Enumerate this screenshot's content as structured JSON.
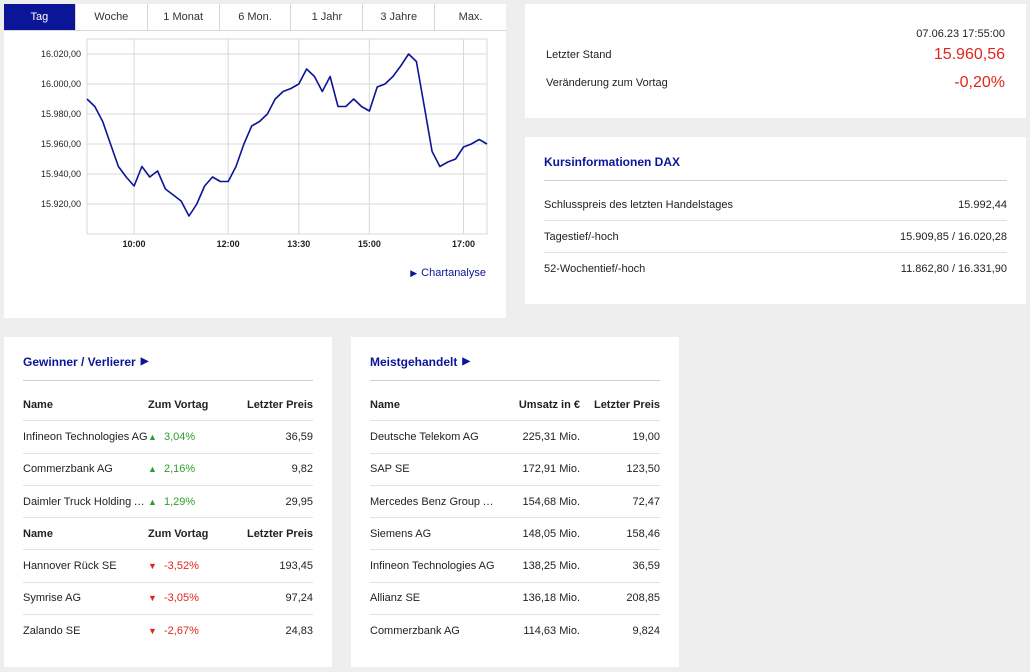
{
  "tabs": [
    {
      "label": "Tag",
      "active": true
    },
    {
      "label": "Woche",
      "active": false
    },
    {
      "label": "1 Monat",
      "active": false
    },
    {
      "label": "6 Mon.",
      "active": false
    },
    {
      "label": "1 Jahr",
      "active": false
    },
    {
      "label": "3 Jahre",
      "active": false
    },
    {
      "label": "Max.",
      "active": false
    }
  ],
  "chart_data": {
    "type": "line",
    "title": "",
    "xlabel": "",
    "ylabel": "",
    "ylim": [
      15900,
      16030
    ],
    "xlim": [
      "09:00",
      "17:30"
    ],
    "grid": true,
    "x_ticks": [
      "10:00",
      "12:00",
      "13:30",
      "15:00",
      "17:00"
    ],
    "y_ticks": [
      "16.020,00",
      "16.000,00",
      "15.980,00",
      "15.960,00",
      "15.940,00",
      "15.920,00"
    ],
    "y_tick_values": [
      16020,
      16000,
      15980,
      15960,
      15940,
      15920
    ],
    "color": "#0b1597",
    "series": [
      {
        "x": [
          "09:00",
          "09:10",
          "09:20",
          "09:30",
          "09:40",
          "09:50",
          "10:00",
          "10:10",
          "10:20",
          "10:30",
          "10:40",
          "10:50",
          "11:00",
          "11:10",
          "11:20",
          "11:30",
          "11:40",
          "11:50",
          "12:00",
          "12:10",
          "12:20",
          "12:30",
          "12:40",
          "12:50",
          "13:00",
          "13:10",
          "13:20",
          "13:30",
          "13:40",
          "13:50",
          "14:00",
          "14:10",
          "14:20",
          "14:30",
          "14:40",
          "14:50",
          "15:00",
          "15:10",
          "15:20",
          "15:30",
          "15:40",
          "15:50",
          "16:00",
          "16:10",
          "16:20",
          "16:30",
          "16:40",
          "16:50",
          "17:00",
          "17:10",
          "17:20",
          "17:30"
        ],
        "y": [
          15990,
          15985,
          15975,
          15960,
          15945,
          15938,
          15932,
          15945,
          15938,
          15942,
          15930,
          15926,
          15922,
          15912,
          15920,
          15932,
          15938,
          15935,
          15935,
          15945,
          15960,
          15972,
          15975,
          15980,
          15990,
          15995,
          15997,
          16000,
          16010,
          16005,
          15995,
          16005,
          15985,
          15985,
          15990,
          15985,
          15982,
          15998,
          16000,
          16005,
          16012,
          16020,
          16015,
          15985,
          15955,
          15945,
          15948,
          15950,
          15958,
          15960,
          15963,
          15960
        ]
      }
    ]
  },
  "chart_link": "Chartanalyse",
  "quote": {
    "timestamp": "07.06.23 17:55:00",
    "last_label": "Letzter Stand",
    "last_value": "15.960,56",
    "change_label": "Veränderung zum Vortag",
    "change_value": "-0,20%"
  },
  "info": {
    "title": "Kursinformationen DAX",
    "rows": [
      {
        "label": "Schlusspreis des letzten Handelstages",
        "value": "15.992,44"
      },
      {
        "label": "Tagestief/-hoch",
        "value": "15.909,85 / 16.020,28"
      },
      {
        "label": "52-Wochentief/-hoch",
        "value": "11.862,80 / 16.331,90"
      }
    ]
  },
  "movers": {
    "title": "Gewinner / Verlierer",
    "head": {
      "name": "Name",
      "change": "Zum Vortag",
      "price": "Letzter Preis"
    },
    "gainers": [
      {
        "name": "Infineon Technologies AG",
        "change": "3,04%",
        "price": "36,59"
      },
      {
        "name": "Commerzbank AG",
        "change": "2,16%",
        "price": "9,82"
      },
      {
        "name": "Daimler Truck Holding AG",
        "change": "1,29%",
        "price": "29,95"
      }
    ],
    "losers": [
      {
        "name": "Hannover Rück SE",
        "change": "-3,52%",
        "price": "193,45"
      },
      {
        "name": "Symrise AG",
        "change": "-3,05%",
        "price": "97,24"
      },
      {
        "name": "Zalando SE",
        "change": "-2,67%",
        "price": "24,83"
      }
    ],
    "up_color": "#2e9e2e",
    "down_color": "#e1251b"
  },
  "active": {
    "title": "Meistgehandelt",
    "head": {
      "name": "Name",
      "volume": "Umsatz in €",
      "price": "Letzter Preis"
    },
    "rows": [
      {
        "name": "Deutsche Telekom AG",
        "volume": "225,31 Mio.",
        "price": "19,00"
      },
      {
        "name": "SAP SE",
        "volume": "172,91 Mio.",
        "price": "123,50"
      },
      {
        "name": "Mercedes Benz Group AG ...",
        "volume": "154,68 Mio.",
        "price": "72,47"
      },
      {
        "name": "Siemens AG",
        "volume": "148,05 Mio.",
        "price": "158,46"
      },
      {
        "name": "Infineon Technologies AG",
        "volume": "138,25 Mio.",
        "price": "36,59"
      },
      {
        "name": "Allianz SE",
        "volume": "136,18 Mio.",
        "price": "208,85"
      },
      {
        "name": "Commerzbank AG",
        "volume": "114,63 Mio.",
        "price": "9,824"
      }
    ]
  },
  "icons": {
    "up": "triangle-up-icon",
    "down": "triangle-down-icon",
    "link": "triangle-right-icon"
  }
}
